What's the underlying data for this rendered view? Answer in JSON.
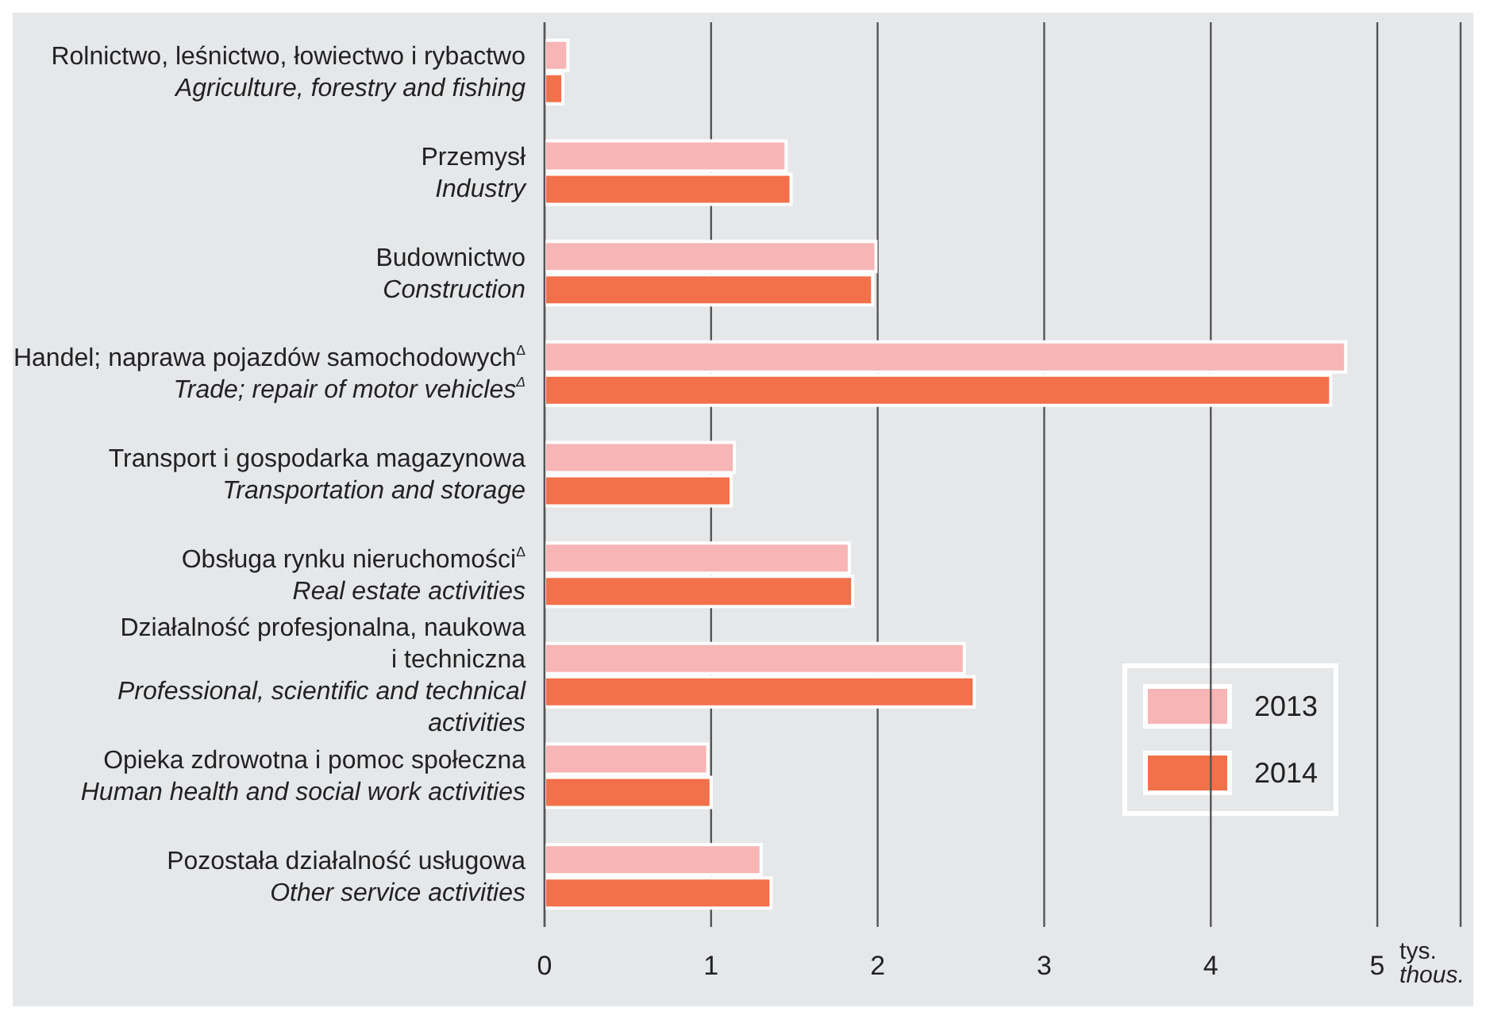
{
  "chart_data": {
    "type": "bar",
    "orientation": "horizontal",
    "xlabel": "tys.\nthous.",
    "categories": [
      "Rolnictwo, leśnictwo, łowiectwo i rybactwo\nAgriculture, forestry and fishing",
      "Przemysł\nIndustry",
      "Budownictwo\nConstruction",
      "Handel; naprawa pojazdów samochodowych$^{Δ}$\nTrade; repair of motor vehicles$^{Δ}$",
      "Transport i gospodarka magazynowa\nTransportation and storage",
      "Obsługa rynku nieruchomości$^{Δ}$\nReal estate activities",
      "Działalność profesjonalna, naukowa\ni techniczna\nProfessional, scientific and technical\nactivities",
      "Opieka zdrowotna i pomoc społeczna\nHuman health and social work activities",
      "Pozostała działalność usługowa\nOther service activities"
    ],
    "series": [
      {
        "name": "2013",
        "color": "#f7b5b5",
        "values": [
          0.14,
          1.45,
          1.99,
          4.81,
          1.14,
          1.83,
          2.52,
          0.98,
          1.3
        ]
      },
      {
        "name": "2014",
        "color": "#f2704a",
        "values": [
          0.11,
          1.48,
          1.97,
          4.72,
          1.12,
          1.85,
          2.58,
          1.0,
          1.36
        ]
      }
    ],
    "xlim": [
      0,
      5.5
    ],
    "xticks": [
      0,
      1,
      2,
      3,
      4,
      5
    ],
    "grid": "x",
    "legend": "bottom right"
  }
}
